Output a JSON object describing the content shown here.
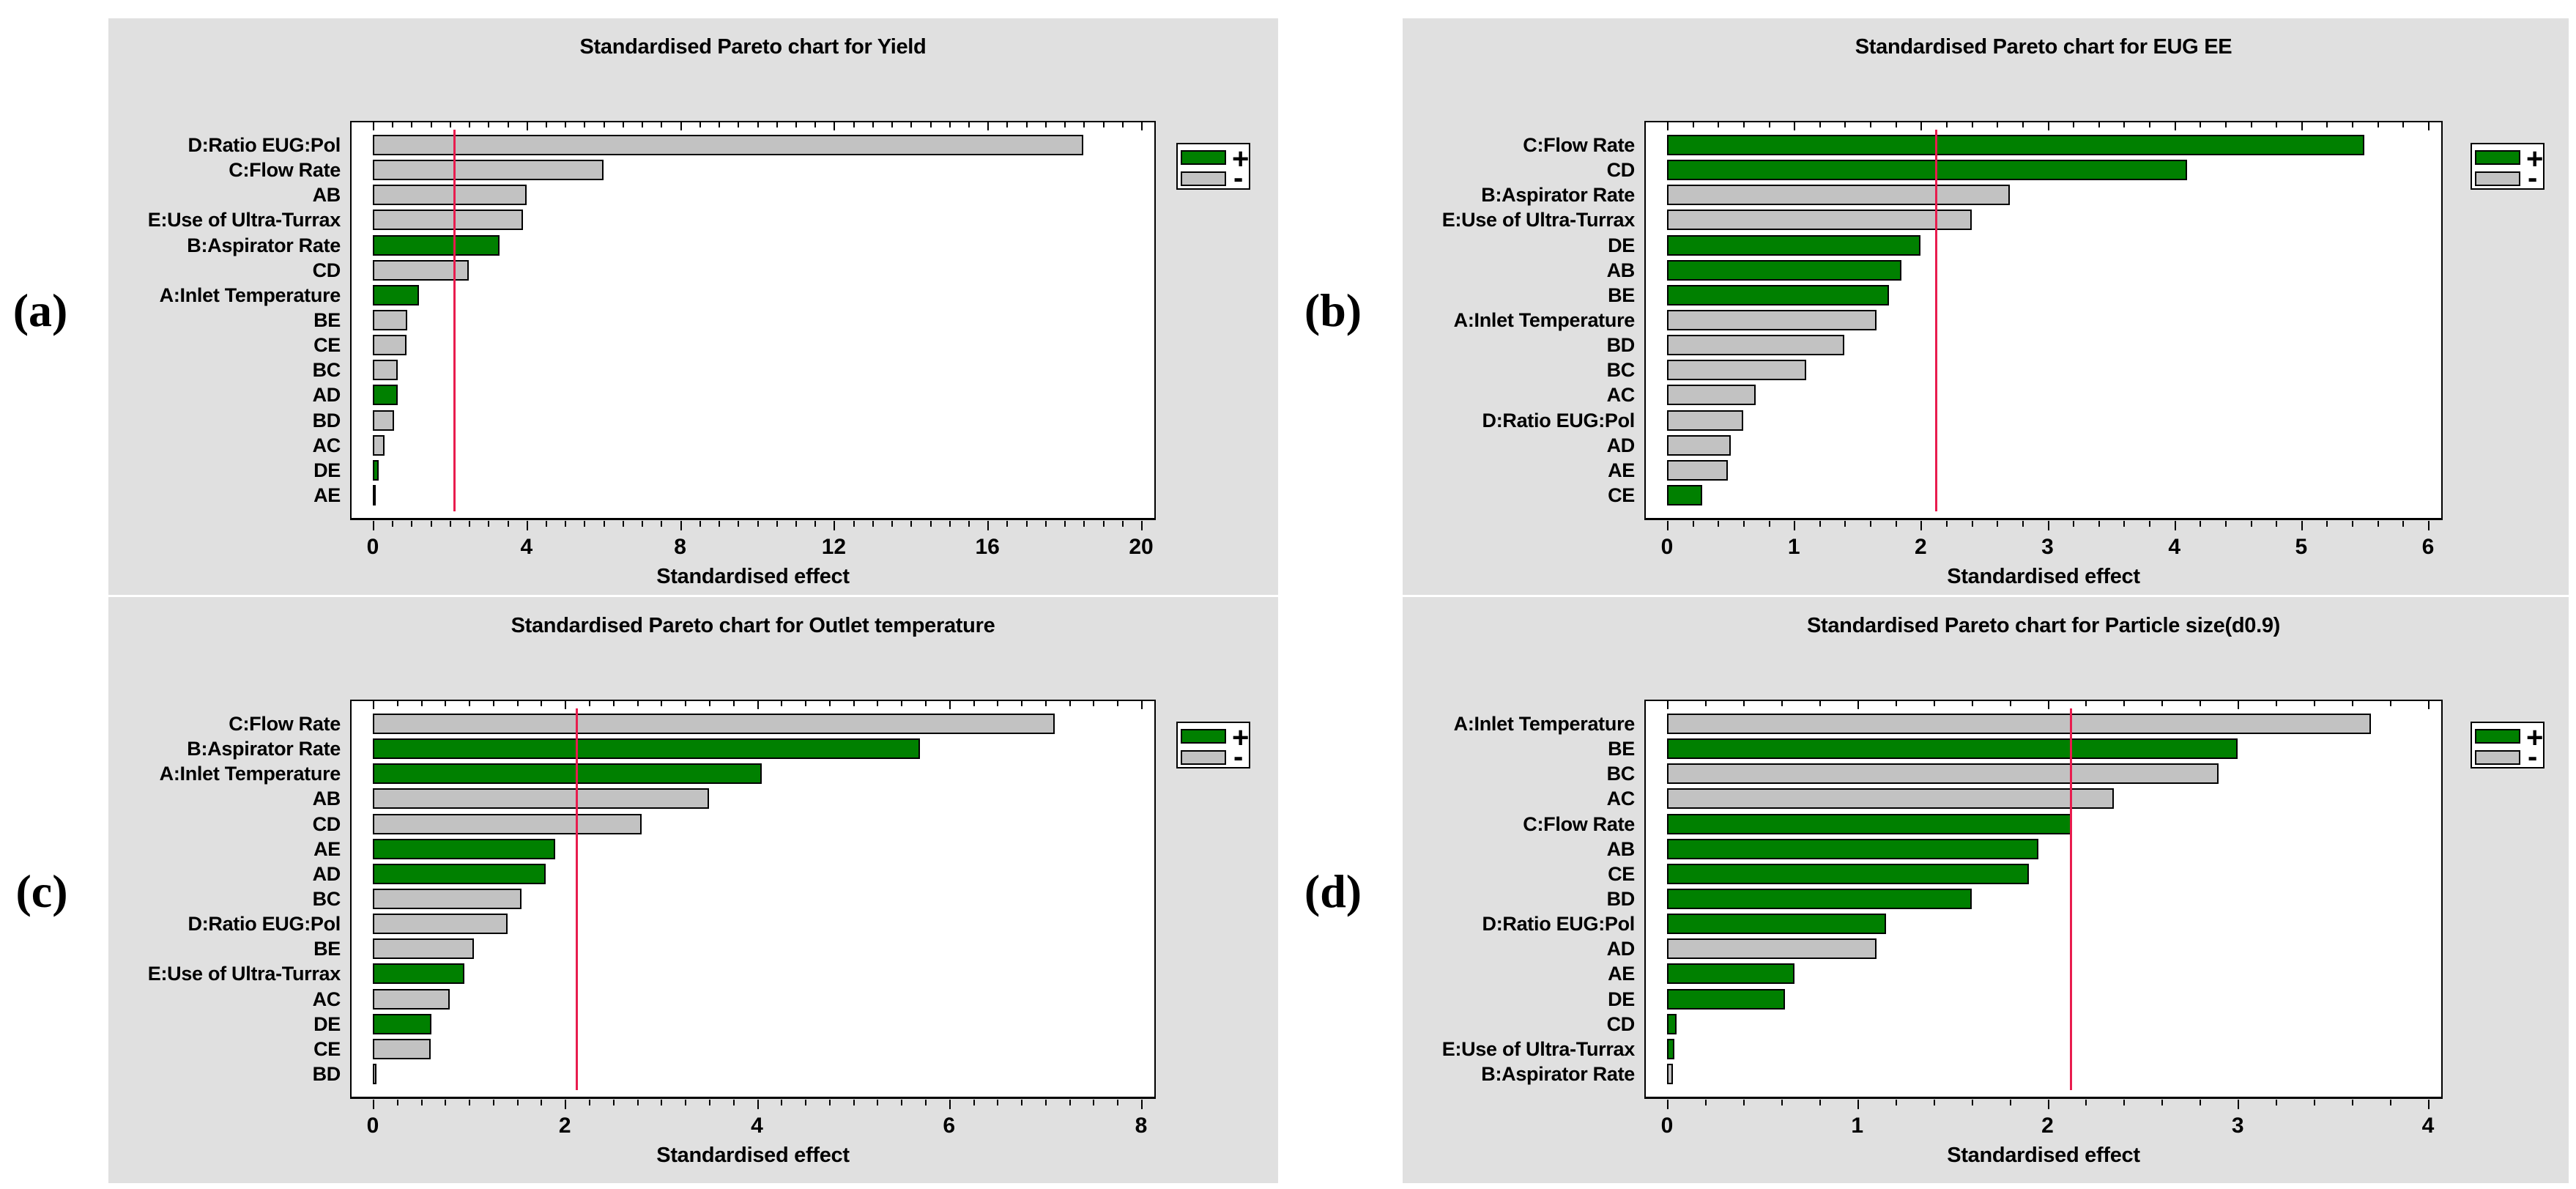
{
  "figure_background": "#ffffff",
  "colors": {
    "panel_background": "#e0e0e0",
    "plot_background": "#ffffff",
    "bar_positive": "#008000",
    "bar_negative": "#c2c2c2",
    "bar_border": "#000000",
    "reference_line": "#e81c4e",
    "frame": "#000000",
    "text": "#000000"
  },
  "legend": {
    "positive_label": "+",
    "negative_label": "-"
  },
  "chart_data": [
    {
      "type": "bar",
      "orientation": "horizontal",
      "panel_label": "(a)",
      "title": "Standardised Pareto chart for Yield",
      "xlabel": "Standardised effect",
      "categories": [
        "D:Ratio EUG:Pol",
        "C:Flow Rate",
        "AB",
        "E:Use of Ultra-Turrax",
        "B:Aspirator Rate",
        "CD",
        "A:Inlet Temperature",
        "BE",
        "CE",
        "BC",
        "AD",
        "BD",
        "AC",
        "DE",
        "AE"
      ],
      "values": [
        18.5,
        6.0,
        4.0,
        3.9,
        3.3,
        2.5,
        1.2,
        0.9,
        0.88,
        0.65,
        0.65,
        0.55,
        0.3,
        0.15,
        0.08
      ],
      "signs": [
        "-",
        "-",
        "-",
        "-",
        "+",
        "-",
        "+",
        "-",
        "-",
        "-",
        "+",
        "-",
        "-",
        "+",
        "-"
      ],
      "xlim": [
        0,
        20.5
      ],
      "xticks": [
        0,
        4,
        8,
        12,
        16,
        20
      ],
      "minor_tick_step": 0.5,
      "reference_line": 2.12,
      "grid": false,
      "legend_position": "right"
    },
    {
      "type": "bar",
      "orientation": "horizontal",
      "panel_label": "(b)",
      "title": "Standardised Pareto chart for EUG EE",
      "xlabel": "Standardised effect",
      "categories": [
        "C:Flow Rate",
        "CD",
        "B:Aspirator Rate",
        "E:Use of Ultra-Turrax",
        "DE",
        "AB",
        "BE",
        "A:Inlet Temperature",
        "BD",
        "BC",
        "AC",
        "D:Ratio EUG:Pol",
        "AD",
        "AE",
        "CE"
      ],
      "values": [
        5.5,
        4.1,
        2.7,
        2.4,
        2.0,
        1.85,
        1.75,
        1.65,
        1.4,
        1.1,
        0.7,
        0.6,
        0.5,
        0.48,
        0.28
      ],
      "signs": [
        "+",
        "+",
        "-",
        "-",
        "+",
        "+",
        "+",
        "-",
        "-",
        "-",
        "-",
        "-",
        "-",
        "-",
        "+"
      ],
      "xlim": [
        0,
        6.15
      ],
      "xticks": [
        0,
        1,
        2,
        3,
        4,
        5,
        6
      ],
      "minor_tick_step": 0.2,
      "reference_line": 2.12,
      "grid": false,
      "legend_position": "right"
    },
    {
      "type": "bar",
      "orientation": "horizontal",
      "panel_label": "(c)",
      "title": "Standardised Pareto chart for Outlet temperature",
      "xlabel": "Standardised effect",
      "categories": [
        "C:Flow Rate",
        "B:Aspirator Rate",
        "A:Inlet Temperature",
        "AB",
        "CD",
        "AE",
        "AD",
        "BC",
        "D:Ratio EUG:Pol",
        "BE",
        "E:Use of Ultra-Turrax",
        "AC",
        "DE",
        "CE",
        "BD"
      ],
      "values": [
        7.1,
        5.7,
        4.05,
        3.5,
        2.8,
        1.9,
        1.8,
        1.55,
        1.4,
        1.05,
        0.95,
        0.8,
        0.61,
        0.6,
        0.04
      ],
      "signs": [
        "-",
        "+",
        "+",
        "-",
        "-",
        "+",
        "+",
        "-",
        "-",
        "-",
        "+",
        "-",
        "+",
        "-",
        "-"
      ],
      "xlim": [
        0,
        8.2
      ],
      "xticks": [
        0,
        2,
        4,
        6,
        8
      ],
      "minor_tick_step": 0.25,
      "reference_line": 2.12,
      "grid": false,
      "legend_position": "right"
    },
    {
      "type": "bar",
      "orientation": "horizontal",
      "panel_label": "(d)",
      "title": "Standardised Pareto chart for Particle size(d0.9)",
      "xlabel": "Standardised effect",
      "categories": [
        "A:Inlet Temperature",
        "BE",
        "BC",
        "AC",
        "C:Flow Rate",
        "AB",
        "CE",
        "BD",
        "D:Ratio EUG:Pol",
        "AD",
        "AE",
        "DE",
        "CD",
        "E:Use of Ultra-Turrax",
        "B:Aspirator Rate"
      ],
      "values": [
        3.7,
        3.0,
        2.9,
        2.35,
        2.13,
        1.95,
        1.9,
        1.6,
        1.15,
        1.1,
        0.67,
        0.62,
        0.05,
        0.04,
        0.03
      ],
      "signs": [
        "-",
        "+",
        "-",
        "-",
        "+",
        "+",
        "+",
        "+",
        "+",
        "-",
        "+",
        "+",
        "+",
        "+",
        "-"
      ],
      "xlim": [
        0,
        4.1
      ],
      "xticks": [
        0,
        1,
        2,
        3,
        4
      ],
      "minor_tick_step": 0.2,
      "reference_line": 2.12,
      "grid": false,
      "legend_position": "right"
    }
  ]
}
